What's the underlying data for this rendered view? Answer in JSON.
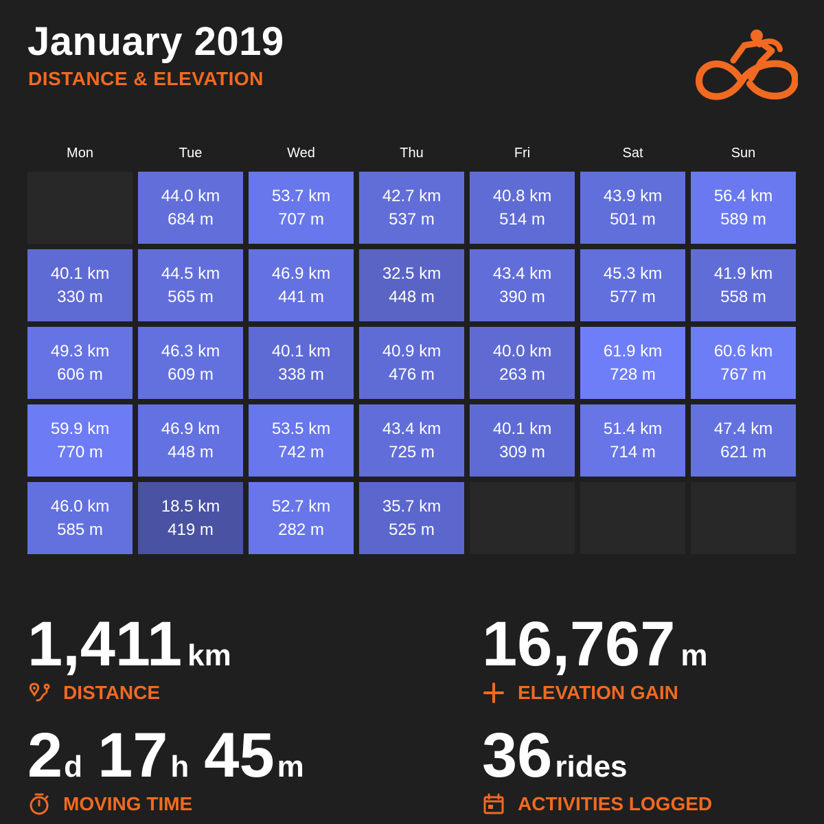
{
  "header": {
    "title": "January 2019",
    "subtitle": "DISTANCE & ELEVATION",
    "logo_icon": "cyclist-icon",
    "accent_color": "#f26a21"
  },
  "calendar": {
    "weekdays": [
      "Mon",
      "Tue",
      "Wed",
      "Thu",
      "Fri",
      "Sat",
      "Sun"
    ],
    "color_scale": {
      "low": "#4a52a3",
      "high": "#6e7ef8",
      "empty": "#282828"
    },
    "cells": [
      null,
      {
        "distance": "44.0 km",
        "elevation": "684 m"
      },
      {
        "distance": "53.7 km",
        "elevation": "707 m"
      },
      {
        "distance": "42.7 km",
        "elevation": "537 m"
      },
      {
        "distance": "40.8 km",
        "elevation": "514 m"
      },
      {
        "distance": "43.9 km",
        "elevation": "501 m"
      },
      {
        "distance": "56.4 km",
        "elevation": "589 m"
      },
      {
        "distance": "40.1 km",
        "elevation": "330 m"
      },
      {
        "distance": "44.5 km",
        "elevation": "565 m"
      },
      {
        "distance": "46.9 km",
        "elevation": "441 m"
      },
      {
        "distance": "32.5 km",
        "elevation": "448 m"
      },
      {
        "distance": "43.4 km",
        "elevation": "390 m"
      },
      {
        "distance": "45.3 km",
        "elevation": "577 m"
      },
      {
        "distance": "41.9 km",
        "elevation": "558 m"
      },
      {
        "distance": "49.3 km",
        "elevation": "606 m"
      },
      {
        "distance": "46.3 km",
        "elevation": "609 m"
      },
      {
        "distance": "40.1 km",
        "elevation": "338 m"
      },
      {
        "distance": "40.9 km",
        "elevation": "476 m"
      },
      {
        "distance": "40.0 km",
        "elevation": "263 m"
      },
      {
        "distance": "61.9 km",
        "elevation": "728 m"
      },
      {
        "distance": "60.6 km",
        "elevation": "767 m"
      },
      {
        "distance": "59.9 km",
        "elevation": "770 m"
      },
      {
        "distance": "46.9 km",
        "elevation": "448 m"
      },
      {
        "distance": "53.5 km",
        "elevation": "742 m"
      },
      {
        "distance": "43.4 km",
        "elevation": "725 m"
      },
      {
        "distance": "40.1 km",
        "elevation": "309 m"
      },
      {
        "distance": "51.4 km",
        "elevation": "714 m"
      },
      {
        "distance": "47.4 km",
        "elevation": "621 m"
      },
      {
        "distance": "46.0 km",
        "elevation": "585 m"
      },
      {
        "distance": "18.5 km",
        "elevation": "419 m"
      },
      {
        "distance": "52.7 km",
        "elevation": "282 m"
      },
      {
        "distance": "35.7 km",
        "elevation": "525 m"
      },
      null,
      null,
      null
    ]
  },
  "stats": {
    "distance": {
      "value": "1,411",
      "unit": "km",
      "label": "DISTANCE",
      "icon": "route-icon"
    },
    "elevation": {
      "value": "16,767",
      "unit": "m",
      "label": "ELEVATION GAIN",
      "icon": "plus-icon"
    },
    "moving_time": {
      "days": "2",
      "days_unit": "d",
      "hours": "17",
      "hours_unit": "h",
      "minutes": "45",
      "minutes_unit": "m",
      "label": "MOVING TIME",
      "icon": "stopwatch-icon"
    },
    "activities": {
      "value": "36",
      "unit": "rides",
      "label": "ACTIVITIES LOGGED",
      "icon": "calendar-icon"
    }
  }
}
